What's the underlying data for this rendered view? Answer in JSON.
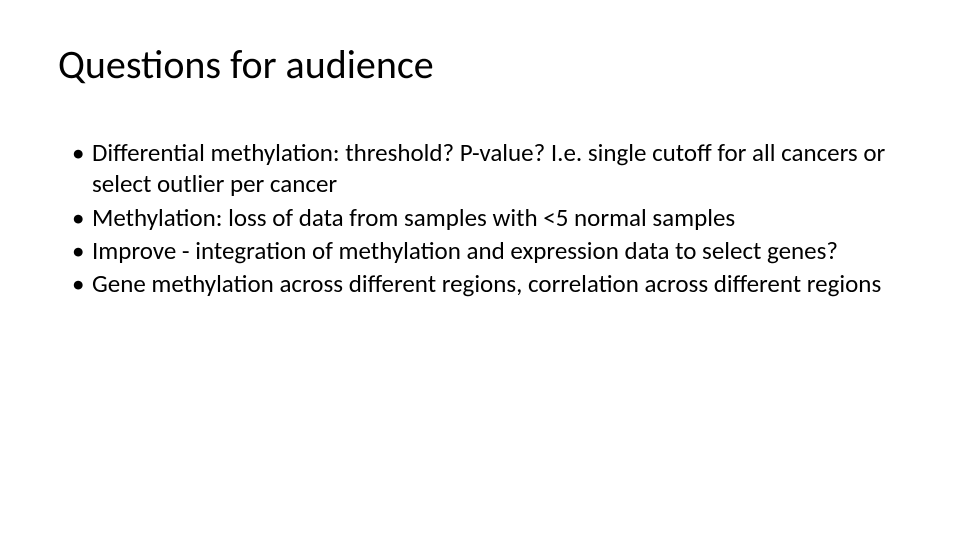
{
  "slide": {
    "title": "Questions for audience",
    "title_fontsize": 40,
    "title_color": "#000000",
    "body_fontsize": 25,
    "body_color": "#000000",
    "background_color": "#ffffff",
    "bullets": [
      "Differential methylation: threshold? P-value? I.e. single cutoff for all cancers or select outlier per cancer",
      "Methylation: loss of data from samples with <5 normal samples",
      "Improve - integration of methylation and expression data to select genes?",
      "Gene methylation across different regions, correlation across different regions"
    ]
  }
}
